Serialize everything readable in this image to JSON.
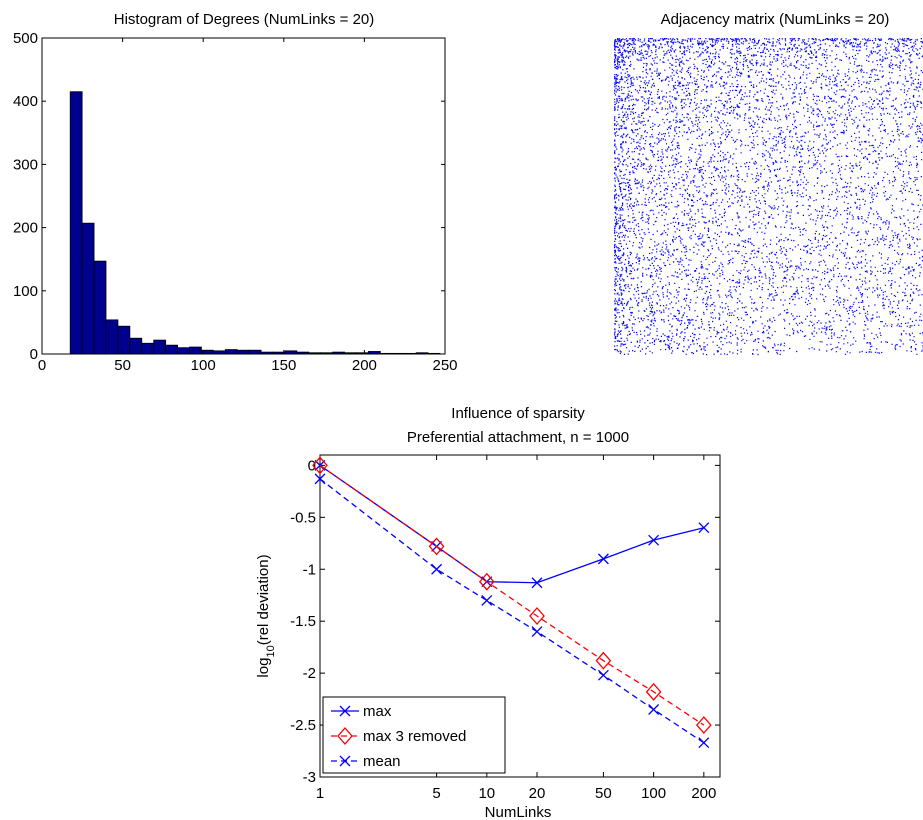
{
  "chart_data": [
    {
      "type": "bar",
      "title": "Histogram of Degrees (NumLinks = 20)",
      "xlim": [
        0,
        250
      ],
      "ylim": [
        0,
        500
      ],
      "xticks": [
        "0",
        "50",
        "100",
        "150",
        "200",
        "250"
      ],
      "yticks": [
        "0",
        "100",
        "200",
        "300",
        "400",
        "500"
      ],
      "bin_width": 7.4,
      "bin_start": 17.5,
      "values": [
        415,
        207,
        147,
        54,
        44,
        25,
        17,
        22,
        14,
        10,
        11,
        6,
        5,
        7,
        6,
        6,
        3,
        3,
        5,
        3,
        2,
        2,
        3,
        2,
        2,
        4,
        1,
        1,
        1,
        2,
        1
      ]
    },
    {
      "type": "heatmap",
      "title": "Adjacency matrix (NumLinks = 20)",
      "color": "#0000ff",
      "n": 1000
    },
    {
      "type": "line",
      "title": "Influence of sparsity",
      "subtitle": "Preferential attachment, n = 1000",
      "xlabel": "NumLinks",
      "ylabel_main": "log",
      "ylabel_sub": "10",
      "ylabel_rest": "(rel deviation)",
      "xscale": "log",
      "xlim": [
        1,
        250
      ],
      "ylim": [
        -3,
        0.1
      ],
      "xticks": [
        "1",
        "5",
        "10",
        "20",
        "50",
        "100",
        "200"
      ],
      "yticks": [
        "0",
        "-0.5",
        "-1",
        "-1.5",
        "-2",
        "-2.5",
        "-3"
      ],
      "x": [
        1,
        5,
        10,
        20,
        50,
        100,
        200
      ],
      "series": [
        {
          "name": "max",
          "values": [
            0,
            -0.78,
            -1.12,
            -1.13,
            -0.9,
            -0.72,
            -0.6
          ],
          "color": "#0000ff",
          "dash": "solid",
          "marker": "x"
        },
        {
          "name": "max 3 removed",
          "values": [
            0,
            -0.78,
            -1.12,
            -1.45,
            -1.88,
            -2.18,
            -2.5
          ],
          "color": "#ff0000",
          "dash": "dashed",
          "marker": "diamond"
        },
        {
          "name": "mean",
          "values": [
            -0.13,
            -1.0,
            -1.3,
            -1.6,
            -2.02,
            -2.35,
            -2.67
          ],
          "color": "#0000ff",
          "dash": "dashed",
          "marker": "x"
        }
      ],
      "legend_position": "bottom-left"
    }
  ]
}
